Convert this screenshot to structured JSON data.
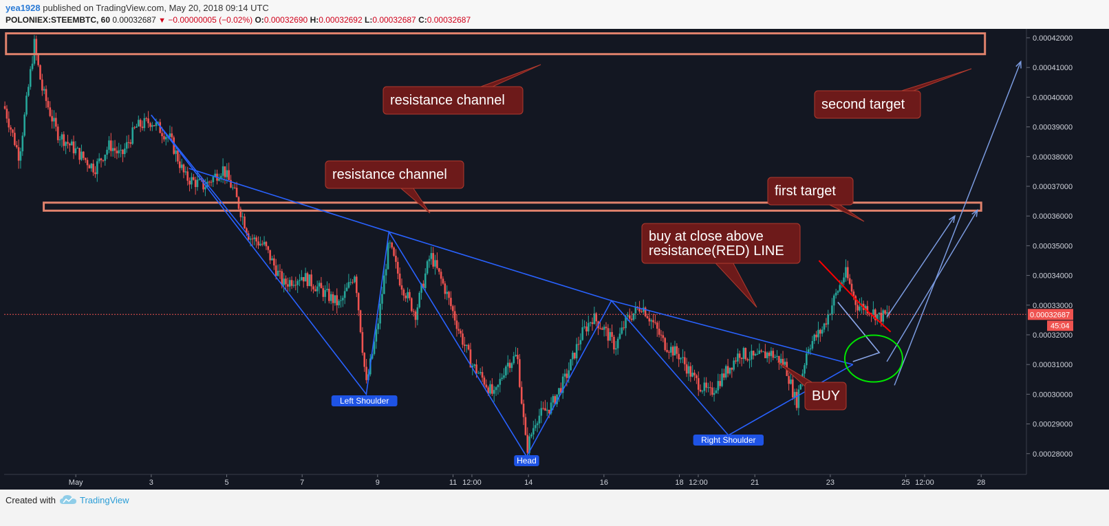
{
  "header": {
    "author": "yea1928",
    "published": "published on TradingView.com, May 20, 2018 09:14 UTC",
    "symbol": "POLONIEX:STEEMBTC, 60",
    "last": "0.00032687",
    "change": "−0.00000005 (−0.02%)",
    "o_label": "O:",
    "o": "0.00032690",
    "h_label": "H:",
    "h": "0.00032692",
    "l_label": "L:",
    "l": "0.00032687",
    "c_label": "C:",
    "c": "0.00032687"
  },
  "footer": {
    "created": "Created with",
    "brand": "TradingView"
  },
  "colors": {
    "background": "#131722",
    "up": "#26a69a",
    "down": "#ef5350",
    "trendline": "#2962ff",
    "channel": "#e0826c",
    "callout": "#6d1a1a",
    "arrow": "#7b9be0",
    "ellipse": "#00e600",
    "redline": "#ff0000"
  },
  "chart_data": {
    "type": "candlestick",
    "ylim": [
      0.000273,
      0.000423
    ],
    "yticks": [
      "0.00042000",
      "0.00041000",
      "0.00040000",
      "0.00039000",
      "0.00038000",
      "0.00037000",
      "0.00036000",
      "0.00035000",
      "0.00034000",
      "0.00033000",
      "0.00032000",
      "0.00031000",
      "0.00030000",
      "0.00029000",
      "0.00028000"
    ],
    "ytick_values": [
      0.00042,
      0.00041,
      0.0004,
      0.00039,
      0.00038,
      0.00037,
      0.00036,
      0.00035,
      0.00034,
      0.00033,
      0.00032,
      0.00031,
      0.0003,
      0.00029,
      0.00028
    ],
    "xticks": [
      "May",
      "3",
      "5",
      "7",
      "9",
      "11",
      "12:00",
      "14",
      "16",
      "18",
      "12:00",
      "21",
      "23",
      "25",
      "12:00",
      "28"
    ],
    "xtick_days": [
      1,
      3,
      5,
      7,
      9,
      11,
      11.5,
      13,
      15,
      17,
      17.5,
      19,
      21,
      23,
      23.5,
      25
    ],
    "xlim_days": [
      -0.9,
      26.2
    ],
    "last_price_label": "0.00032687",
    "countdown_label": "45:04",
    "last_price": 0.00032687,
    "price_path": [
      [
        -0.9,
        0.000397
      ],
      [
        -0.5,
        0.00038
      ],
      [
        -0.1,
        0.000418
      ],
      [
        0.1,
        0.000403
      ],
      [
        0.5,
        0.000388
      ],
      [
        1.0,
        0.000382
      ],
      [
        1.5,
        0.000376
      ],
      [
        1.9,
        0.000384
      ],
      [
        2.2,
        0.00038
      ],
      [
        2.6,
        0.00039
      ],
      [
        3.0,
        0.000392
      ],
      [
        3.5,
        0.000386
      ],
      [
        3.9,
        0.000373
      ],
      [
        4.4,
        0.00037
      ],
      [
        4.9,
        0.000376
      ],
      [
        5.2,
        0.000368
      ],
      [
        5.6,
        0.000353
      ],
      [
        6.0,
        0.00035
      ],
      [
        6.5,
        0.000337
      ],
      [
        7.0,
        0.00034
      ],
      [
        7.5,
        0.000335
      ],
      [
        8.0,
        0.00033
      ],
      [
        8.4,
        0.000341
      ],
      [
        8.7,
        0.000303
      ],
      [
        9.0,
        0.000323
      ],
      [
        9.3,
        0.000351
      ],
      [
        9.6,
        0.000338
      ],
      [
        10.0,
        0.000327
      ],
      [
        10.4,
        0.000347
      ],
      [
        10.8,
        0.000335
      ],
      [
        11.2,
        0.00032
      ],
      [
        11.5,
        0.00031
      ],
      [
        11.8,
        0.000305
      ],
      [
        12.1,
        0.000299
      ],
      [
        12.4,
        0.00031
      ],
      [
        12.7,
        0.000313
      ],
      [
        12.95,
        0.000281
      ],
      [
        13.2,
        0.000292
      ],
      [
        13.6,
        0.000296
      ],
      [
        14.0,
        0.000306
      ],
      [
        14.4,
        0.00032
      ],
      [
        14.7,
        0.000326
      ],
      [
        15.0,
        0.000322
      ],
      [
        15.3,
        0.000316
      ],
      [
        15.6,
        0.000325
      ],
      [
        16.0,
        0.00033
      ],
      [
        16.3,
        0.000324
      ],
      [
        16.6,
        0.000317
      ],
      [
        17.0,
        0.000313
      ],
      [
        17.4,
        0.000305
      ],
      [
        17.8,
        0.0003
      ],
      [
        18.2,
        0.000307
      ],
      [
        18.6,
        0.000314
      ],
      [
        19.0,
        0.000312
      ],
      [
        19.4,
        0.000314
      ],
      [
        19.8,
        0.00031
      ],
      [
        20.1,
        0.000297
      ],
      [
        20.4,
        0.000316
      ],
      [
        20.8,
        0.000322
      ],
      [
        21.1,
        0.000332
      ],
      [
        21.4,
        0.000341
      ],
      [
        21.7,
        0.00033
      ],
      [
        22.0,
        0.000329
      ],
      [
        22.3,
        0.000326
      ],
      [
        22.6,
        0.000327
      ]
    ]
  },
  "annotations": {
    "resistance_1": "resistance channel",
    "resistance_2": "resistance channel",
    "second_target": "second target",
    "first_target": "first target",
    "buy_note_1": "buy at close above",
    "buy_note_2": "resistance(RED) LINE",
    "buy": "BUY",
    "left_shoulder": "Left Shoulder",
    "head": "Head",
    "right_shoulder": "Right Shoulder"
  }
}
